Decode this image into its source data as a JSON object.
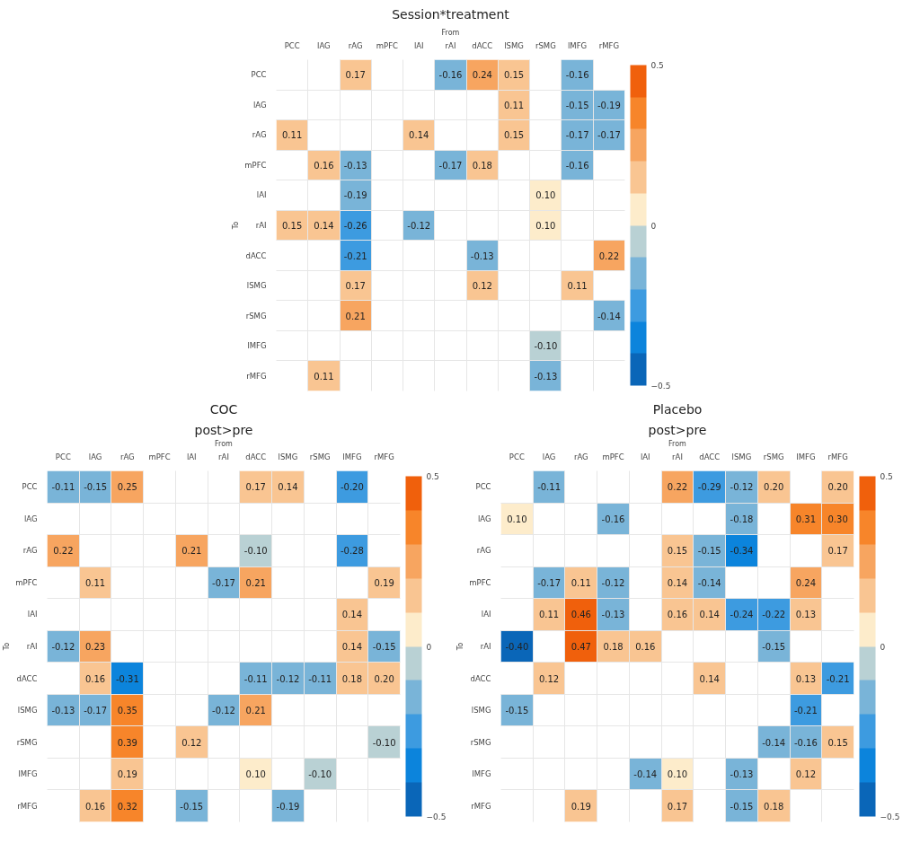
{
  "chart_data": [
    {
      "type": "heatmap",
      "title": "Session*treatment",
      "xlabel": "From",
      "ylabel": "To",
      "categories": [
        "PCC",
        "lAG",
        "rAG",
        "mPFC",
        "lAI",
        "rAI",
        "dACC",
        "lSMG",
        "rSMG",
        "lMFG",
        "rMFG"
      ],
      "y_categories": [
        "PCC",
        "lAG",
        "rAG",
        "mPFC",
        "lAI",
        "rAI",
        "dACC",
        "lSMG",
        "rSMG",
        "lMFG",
        "rMFG"
      ],
      "cells": [
        [
          null,
          null,
          0.17,
          null,
          null,
          -0.16,
          0.24,
          0.15,
          null,
          -0.16,
          null
        ],
        [
          null,
          null,
          null,
          null,
          null,
          null,
          null,
          0.11,
          null,
          -0.15,
          -0.19
        ],
        [
          0.11,
          null,
          null,
          null,
          0.14,
          null,
          null,
          0.15,
          null,
          -0.17,
          -0.17
        ],
        [
          null,
          0.16,
          -0.13,
          null,
          null,
          -0.17,
          0.18,
          null,
          null,
          -0.16,
          null
        ],
        [
          null,
          null,
          -0.19,
          null,
          null,
          null,
          null,
          null,
          0.1,
          null,
          null
        ],
        [
          0.15,
          0.14,
          -0.26,
          null,
          -0.12,
          null,
          null,
          null,
          0.1,
          null,
          null
        ],
        [
          null,
          null,
          -0.21,
          null,
          null,
          null,
          -0.13,
          null,
          null,
          null,
          0.22
        ],
        [
          null,
          null,
          0.17,
          null,
          null,
          null,
          0.12,
          null,
          null,
          0.11,
          null
        ],
        [
          null,
          null,
          0.21,
          null,
          null,
          null,
          null,
          null,
          null,
          null,
          -0.14
        ],
        [
          null,
          null,
          null,
          null,
          null,
          null,
          null,
          null,
          -0.1,
          null,
          null
        ],
        [
          null,
          0.11,
          null,
          null,
          null,
          null,
          null,
          null,
          -0.13,
          null,
          null
        ]
      ],
      "cell_labels": [
        [
          null,
          null,
          "0.17",
          null,
          null,
          "-0.16",
          "0.24",
          "0.15",
          null,
          "-0.16",
          null
        ],
        [
          null,
          null,
          null,
          null,
          null,
          null,
          null,
          "0.11",
          null,
          "-0.15",
          "-0.19"
        ],
        [
          "0.11",
          null,
          null,
          null,
          "0.14",
          null,
          null,
          "0.15",
          null,
          "-0.17",
          "-0.17"
        ],
        [
          null,
          "0.16",
          "-0.13",
          null,
          null,
          "-0.17",
          "0.18",
          null,
          null,
          "-0.16",
          null
        ],
        [
          null,
          null,
          "-0.19",
          null,
          null,
          null,
          null,
          null,
          "0.10",
          null,
          null
        ],
        [
          "0.15",
          "0.14",
          "-0.26",
          null,
          "-0.12",
          null,
          null,
          null,
          "0.10",
          null,
          null
        ],
        [
          null,
          null,
          "-0.21",
          null,
          null,
          null,
          "-0.13",
          null,
          null,
          null,
          "0.22"
        ],
        [
          null,
          null,
          "0.17",
          null,
          null,
          null,
          "0.12",
          null,
          null,
          "0.11",
          null
        ],
        [
          null,
          null,
          "0.21",
          null,
          null,
          null,
          null,
          null,
          null,
          null,
          "-0.14"
        ],
        [
          null,
          null,
          null,
          null,
          null,
          null,
          null,
          null,
          "-0.10",
          null,
          null
        ],
        [
          null,
          "0.11",
          null,
          null,
          null,
          null,
          null,
          null,
          "-0.13",
          null,
          null
        ]
      ],
      "clim": [
        -0.5,
        0.5
      ],
      "cticks": [
        -0.5,
        0,
        0.5
      ],
      "grid": true
    },
    {
      "type": "heatmap",
      "title": "COC",
      "subtitle": "post>pre",
      "xlabel": "From",
      "ylabel": "To",
      "categories": [
        "PCC",
        "lAG",
        "rAG",
        "mPFC",
        "lAI",
        "rAI",
        "dACC",
        "lSMG",
        "rSMG",
        "lMFG",
        "rMFG"
      ],
      "y_categories": [
        "PCC",
        "lAG",
        "rAG",
        "mPFC",
        "lAI",
        "rAI",
        "dACC",
        "lSMG",
        "rSMG",
        "lMFG",
        "rMFG"
      ],
      "cells": [
        [
          -0.11,
          -0.15,
          0.25,
          null,
          null,
          null,
          0.17,
          0.14,
          null,
          -0.2,
          null
        ],
        [
          null,
          null,
          null,
          null,
          null,
          null,
          null,
          null,
          null,
          null,
          null
        ],
        [
          0.22,
          null,
          null,
          null,
          0.21,
          null,
          -0.1,
          null,
          null,
          -0.28,
          null
        ],
        [
          null,
          0.11,
          null,
          null,
          null,
          -0.17,
          0.21,
          null,
          null,
          null,
          0.19
        ],
        [
          null,
          null,
          null,
          null,
          null,
          null,
          null,
          null,
          null,
          0.14,
          null
        ],
        [
          -0.12,
          0.23,
          null,
          null,
          null,
          null,
          null,
          null,
          null,
          0.14,
          -0.15
        ],
        [
          null,
          0.16,
          -0.31,
          null,
          null,
          null,
          -0.11,
          -0.12,
          -0.11,
          0.18,
          0.2
        ],
        [
          -0.13,
          -0.17,
          0.35,
          null,
          null,
          -0.12,
          0.21,
          null,
          null,
          null,
          null
        ],
        [
          null,
          null,
          0.39,
          null,
          0.12,
          null,
          null,
          null,
          null,
          null,
          -0.1
        ],
        [
          null,
          null,
          0.19,
          null,
          null,
          null,
          0.1,
          null,
          -0.1,
          null,
          null
        ],
        [
          null,
          0.16,
          0.32,
          null,
          -0.15,
          null,
          null,
          -0.19,
          null,
          null,
          null
        ]
      ],
      "cell_labels": [
        [
          "-0.11",
          "-0.15",
          "0.25",
          null,
          null,
          null,
          "0.17",
          "0.14",
          null,
          "-0.20",
          null
        ],
        [
          null,
          null,
          null,
          null,
          null,
          null,
          null,
          null,
          null,
          null,
          null
        ],
        [
          "0.22",
          null,
          null,
          null,
          "0.21",
          null,
          "-0.10",
          null,
          null,
          "-0.28",
          null
        ],
        [
          null,
          "0.11",
          null,
          null,
          null,
          "-0.17",
          "0.21",
          null,
          null,
          null,
          "0.19"
        ],
        [
          null,
          null,
          null,
          null,
          null,
          null,
          null,
          null,
          null,
          "0.14",
          null
        ],
        [
          "-0.12",
          "0.23",
          null,
          null,
          null,
          null,
          null,
          null,
          null,
          "0.14",
          "-0.15"
        ],
        [
          null,
          "0.16",
          "-0.31",
          null,
          null,
          null,
          "-0.11",
          "-0.12",
          "-0.11",
          "0.18",
          "0.20"
        ],
        [
          "-0.13",
          "-0.17",
          "0.35",
          null,
          null,
          "-0.12",
          "0.21",
          null,
          null,
          null,
          null
        ],
        [
          null,
          null,
          "0.39",
          null,
          "0.12",
          null,
          null,
          null,
          null,
          null,
          "-0.10"
        ],
        [
          null,
          null,
          "0.19",
          null,
          null,
          null,
          "0.10",
          null,
          "-0.10",
          null,
          null
        ],
        [
          null,
          "0.16",
          "0.32",
          null,
          "-0.15",
          null,
          null,
          "-0.19",
          null,
          null,
          null
        ]
      ],
      "clim": [
        -0.5,
        0.5
      ],
      "cticks": [
        -0.5,
        0,
        0.5
      ],
      "grid": true
    },
    {
      "type": "heatmap",
      "title": "Placebo",
      "subtitle": "post>pre",
      "xlabel": "From",
      "ylabel": "To",
      "categories": [
        "PCC",
        "lAG",
        "rAG",
        "mPFC",
        "lAI",
        "rAI",
        "dACC",
        "lSMG",
        "rSMG",
        "lMFG",
        "rMFG"
      ],
      "y_categories": [
        "PCC",
        "lAG",
        "rAG",
        "mPFC",
        "lAI",
        "rAI",
        "dACC",
        "lSMG",
        "rSMG",
        "lMFG",
        "rMFG"
      ],
      "cells": [
        [
          null,
          -0.11,
          null,
          null,
          null,
          0.22,
          -0.29,
          -0.12,
          0.2,
          null,
          0.2
        ],
        [
          0.1,
          null,
          null,
          -0.16,
          null,
          null,
          null,
          -0.18,
          null,
          0.31,
          0.3
        ],
        [
          null,
          null,
          null,
          null,
          null,
          0.15,
          -0.15,
          -0.34,
          null,
          null,
          0.17
        ],
        [
          null,
          -0.17,
          0.11,
          -0.12,
          null,
          0.14,
          -0.14,
          null,
          null,
          0.24,
          null
        ],
        [
          null,
          0.11,
          0.46,
          -0.13,
          null,
          0.16,
          0.14,
          -0.24,
          -0.22,
          0.13,
          null
        ],
        [
          -0.4,
          null,
          0.47,
          0.18,
          0.16,
          null,
          null,
          null,
          -0.15,
          null,
          null
        ],
        [
          null,
          0.12,
          null,
          null,
          null,
          null,
          0.14,
          null,
          null,
          0.13,
          -0.21
        ],
        [
          -0.15,
          null,
          null,
          null,
          null,
          null,
          null,
          null,
          null,
          -0.21,
          null
        ],
        [
          null,
          null,
          null,
          null,
          null,
          null,
          null,
          null,
          -0.14,
          -0.16,
          0.15
        ],
        [
          null,
          null,
          null,
          null,
          -0.14,
          0.1,
          null,
          -0.13,
          null,
          0.12,
          null
        ],
        [
          null,
          null,
          0.19,
          null,
          null,
          0.17,
          null,
          -0.15,
          0.18,
          null,
          null
        ]
      ],
      "cell_labels": [
        [
          null,
          "-0.11",
          null,
          null,
          null,
          "0.22",
          "-0.29",
          "-0.12",
          "0.20",
          null,
          "0.20"
        ],
        [
          "0.10",
          null,
          null,
          "-0.16",
          null,
          null,
          null,
          "-0.18",
          null,
          "0.31",
          "0.30"
        ],
        [
          null,
          null,
          null,
          null,
          null,
          "0.15",
          "-0.15",
          "-0.34",
          null,
          null,
          "0.17"
        ],
        [
          null,
          "-0.17",
          "0.11",
          "-0.12",
          null,
          "0.14",
          "-0.14",
          null,
          null,
          "0.24",
          null
        ],
        [
          null,
          "0.11",
          "0.46",
          "-0.13",
          null,
          "0.16",
          "0.14",
          "-0.24",
          "-0.22",
          "0.13",
          null
        ],
        [
          "-0.40",
          null,
          "0.47",
          "0.18",
          "0.16",
          null,
          null,
          null,
          "-0.15",
          null,
          null
        ],
        [
          null,
          "0.12",
          null,
          null,
          null,
          null,
          "0.14",
          null,
          null,
          "0.13",
          "-0.21"
        ],
        [
          "-0.15",
          null,
          null,
          null,
          null,
          null,
          null,
          null,
          null,
          "-0.21",
          null
        ],
        [
          null,
          null,
          null,
          null,
          null,
          null,
          null,
          null,
          "-0.14",
          "-0.16",
          "0.15"
        ],
        [
          null,
          null,
          null,
          null,
          "-0.14",
          "0.10",
          null,
          "-0.13",
          null,
          "0.12",
          null
        ],
        [
          null,
          null,
          "0.19",
          null,
          null,
          "0.17",
          null,
          "-0.15",
          "0.18",
          null,
          null
        ]
      ],
      "clim": [
        -0.5,
        0.5
      ],
      "cticks": [
        -0.5,
        0,
        0.5
      ],
      "grid": true
    }
  ]
}
